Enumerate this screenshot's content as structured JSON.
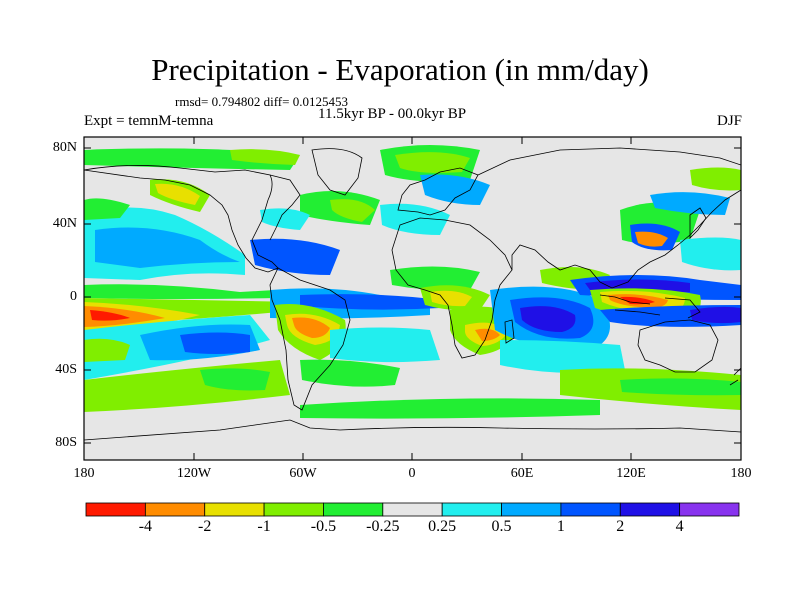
{
  "title": "Precipitation - Evaporation (in mm/day)",
  "stats": "rmsd= 0.794802 diff= 0.0125453",
  "period": "11.5kyr BP - 00.0kyr BP",
  "experiment": "Expt = temnM-temna",
  "season": "DJF",
  "y_ticks": [
    "80N",
    "40N",
    "0",
    "40S",
    "80S"
  ],
  "x_ticks": [
    "180",
    "120W",
    "60W",
    "0",
    "60E",
    "120E",
    "180"
  ],
  "colorbar": {
    "labels": [
      "-4",
      "-2",
      "-1",
      "-0.5",
      "-0.25",
      "0.25",
      "0.5",
      "1",
      "2",
      "4"
    ],
    "colors": [
      "#ff1a00",
      "#ff8c00",
      "#e8e000",
      "#80ee00",
      "#22ee33",
      "#e6e6e6",
      "#22eeee",
      "#00aaff",
      "#0055ff",
      "#1f10e6",
      "#8833ee"
    ]
  },
  "map_colors": {
    "neutral": "#e6e6e6",
    "land_outline": "#000000"
  }
}
